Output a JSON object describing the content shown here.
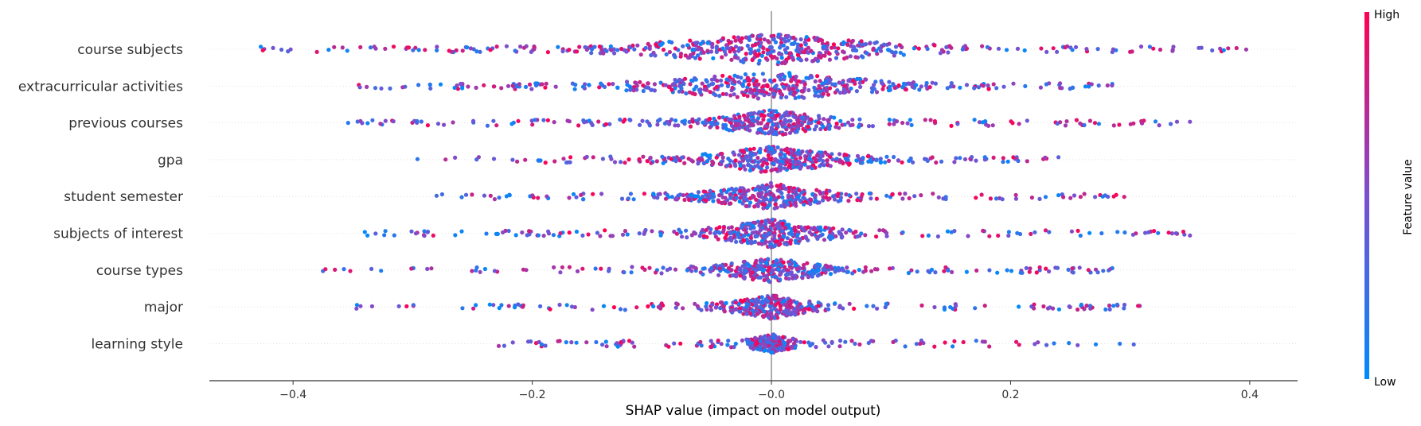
{
  "chart_data": {
    "type": "scatter",
    "subtype": "shap-beeswarm",
    "xlabel": "SHAP value (impact on model output)",
    "xlim": [
      -0.47,
      0.44
    ],
    "xticks": [
      -0.4,
      -0.2,
      -0.0,
      0.2,
      0.4
    ],
    "xtick_labels": [
      "−0.4",
      "−0.2",
      "−0.0",
      "0.2",
      "0.4"
    ],
    "zero_line": true,
    "colorbar": {
      "label": "Feature value",
      "high_label": "High",
      "low_label": "Low",
      "low_color": "#008bfb",
      "high_color": "#ff0052"
    },
    "features": [
      {
        "name": "course subjects",
        "min": -0.427,
        "max": 0.397,
        "core_halfwidth": 0.13,
        "density": 1.0,
        "points": 520
      },
      {
        "name": "extracurricular activities",
        "min": -0.345,
        "max": 0.285,
        "core_halfwidth": 0.11,
        "density": 0.95,
        "points": 480
      },
      {
        "name": "previous courses",
        "min": -0.354,
        "max": 0.35,
        "core_halfwidth": 0.06,
        "density": 0.8,
        "points": 420
      },
      {
        "name": "gpa",
        "min": -0.296,
        "max": 0.24,
        "core_halfwidth": 0.07,
        "density": 0.85,
        "points": 420
      },
      {
        "name": "student semester",
        "min": -0.28,
        "max": 0.295,
        "core_halfwidth": 0.06,
        "density": 0.8,
        "points": 400
      },
      {
        "name": "subjects of interest",
        "min": -0.34,
        "max": 0.35,
        "core_halfwidth": 0.06,
        "density": 0.85,
        "points": 420
      },
      {
        "name": "course types",
        "min": -0.375,
        "max": 0.285,
        "core_halfwidth": 0.05,
        "density": 0.75,
        "points": 380
      },
      {
        "name": "major",
        "min": -0.347,
        "max": 0.308,
        "core_halfwidth": 0.04,
        "density": 0.7,
        "points": 360
      },
      {
        "name": "learning style",
        "min": -0.228,
        "max": 0.303,
        "core_halfwidth": 0.02,
        "density": 0.5,
        "points": 280
      }
    ]
  }
}
